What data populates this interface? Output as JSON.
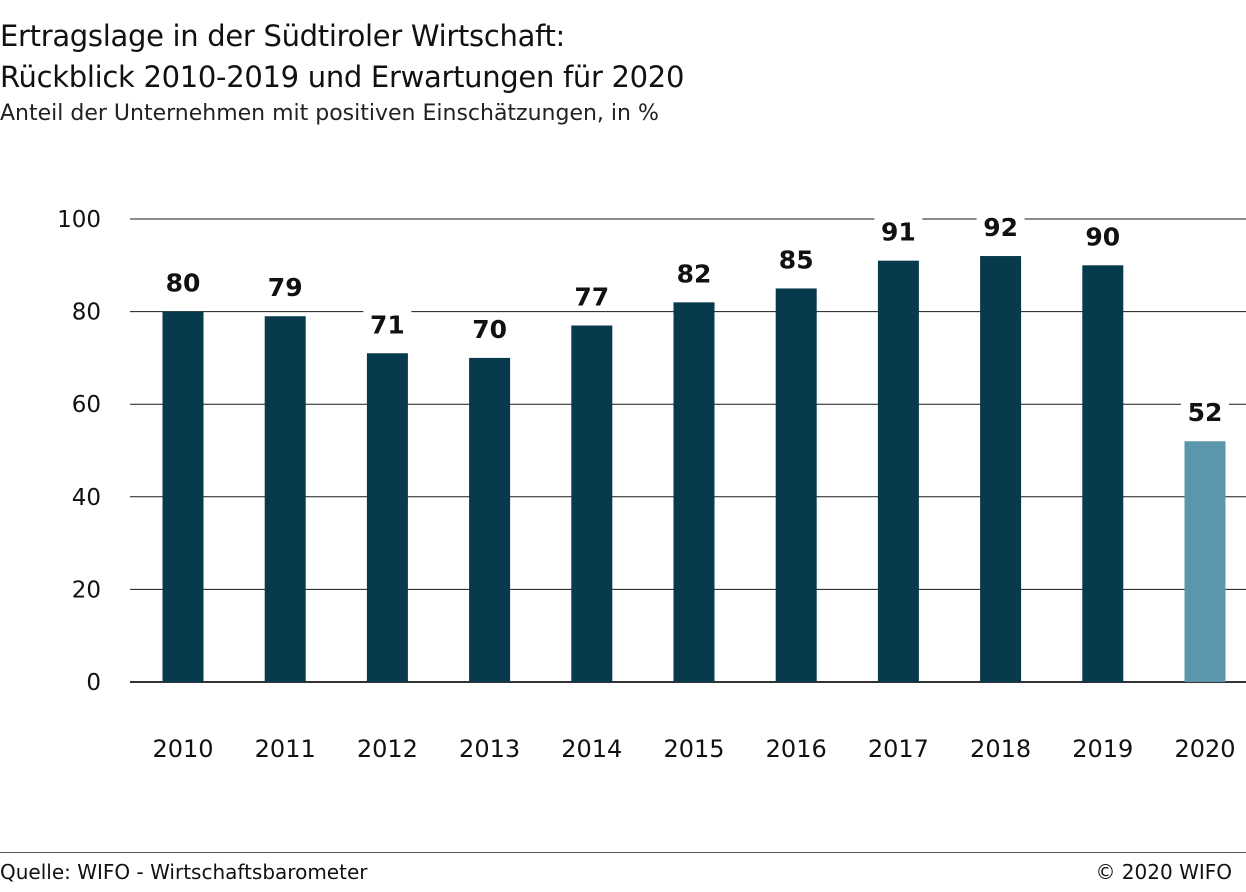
{
  "chart_data": {
    "type": "bar",
    "title_line1": "Ertragslage in der Südtiroler Wirtschaft:",
    "title_line2": "Rückblick 2010-2019 und Erwartungen für 2020",
    "subtitle": "Anteil der Unternehmen mit positiven Einschätzungen, in %",
    "categories": [
      "2010",
      "2011",
      "2012",
      "2013",
      "2014",
      "2015",
      "2016",
      "2017",
      "2018",
      "2019",
      "2020"
    ],
    "values": [
      80,
      79,
      71,
      70,
      77,
      82,
      85,
      91,
      92,
      90,
      52
    ],
    "data_labels": [
      "80",
      "79",
      "71",
      "70",
      "77",
      "82",
      "85",
      "91",
      "92",
      "90",
      "52"
    ],
    "y_ticks": [
      0,
      20,
      40,
      60,
      80,
      100
    ],
    "y_tick_labels": [
      "0",
      "20",
      "40",
      "60",
      "80",
      "100"
    ],
    "ylim": [
      0,
      100
    ],
    "xlabel": "",
    "ylabel": "",
    "grid": true,
    "legend": "none",
    "colors": {
      "historical": "#063a4c",
      "expectation": "#5b96ad",
      "grid": "#1a1a1a"
    },
    "highlight_category": "2020"
  },
  "footer": {
    "source": "Quelle: WIFO - Wirtschaftsbarometer",
    "copyright": "© 2020 WIFO"
  }
}
